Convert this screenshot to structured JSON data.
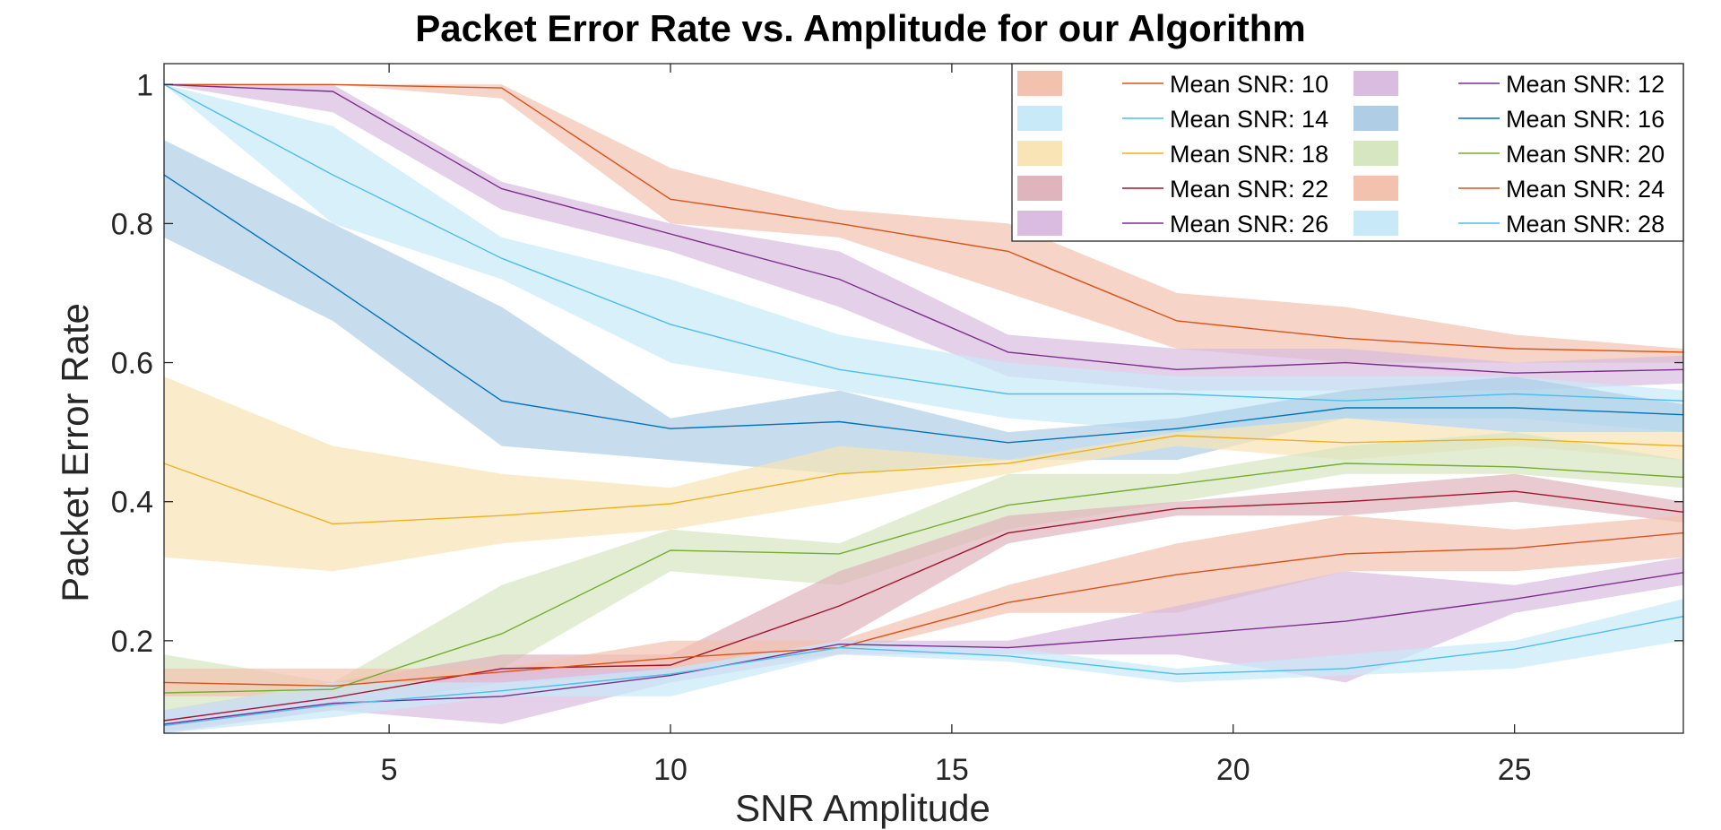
{
  "chart_data": {
    "type": "line",
    "title": "Packet Error Rate vs. Amplitude for our Algorithm",
    "xlabel": "SNR Amplitude",
    "ylabel": "Packet Error Rate",
    "xlim": [
      1,
      28
    ],
    "ylim": [
      0.067,
      1.03
    ],
    "xticks": [
      5,
      10,
      15,
      20,
      25
    ],
    "yticks": [
      0.2,
      0.4,
      0.6,
      0.8,
      1
    ],
    "ytick_labels": [
      "0.2",
      "0.4",
      "0.6",
      "0.8",
      "1"
    ],
    "grid": false,
    "legend_position": "top-right",
    "x": [
      1,
      4,
      7,
      10,
      13,
      16,
      19,
      22,
      25,
      28
    ],
    "series": [
      {
        "name": "Mean SNR: 10",
        "color": "#D95319",
        "fill": "#F2C2AF",
        "mean": [
          1.0,
          1.0,
          0.995,
          0.835,
          0.8,
          0.76,
          0.66,
          0.635,
          0.62,
          0.615
        ],
        "upper": [
          1.0,
          1.0,
          1.0,
          0.88,
          0.82,
          0.8,
          0.7,
          0.68,
          0.64,
          0.62
        ],
        "lower": [
          1.0,
          1.0,
          0.98,
          0.8,
          0.78,
          0.7,
          0.62,
          0.6,
          0.6,
          0.6
        ]
      },
      {
        "name": "Mean SNR: 12",
        "color": "#7E2F8E",
        "fill": "#D9BCDF",
        "mean": [
          1.0,
          0.99,
          0.85,
          0.785,
          0.72,
          0.615,
          0.59,
          0.6,
          0.585,
          0.59
        ],
        "upper": [
          1.0,
          1.0,
          0.86,
          0.8,
          0.76,
          0.64,
          0.62,
          0.62,
          0.6,
          0.61
        ],
        "lower": [
          1.0,
          0.96,
          0.82,
          0.76,
          0.68,
          0.58,
          0.56,
          0.56,
          0.56,
          0.57
        ]
      },
      {
        "name": "Mean SNR: 14",
        "color": "#4DBEEE",
        "fill": "#C7E9F8",
        "mean": [
          1.0,
          0.87,
          0.75,
          0.655,
          0.59,
          0.555,
          0.555,
          0.545,
          0.555,
          0.545
        ],
        "upper": [
          1.0,
          0.94,
          0.78,
          0.72,
          0.64,
          0.6,
          0.58,
          0.58,
          0.58,
          0.56
        ],
        "lower": [
          1.0,
          0.8,
          0.72,
          0.6,
          0.56,
          0.52,
          0.5,
          0.52,
          0.52,
          0.5
        ]
      },
      {
        "name": "Mean SNR: 16",
        "color": "#0072BD",
        "fill": "#AFCEE5",
        "mean": [
          0.87,
          0.71,
          0.545,
          0.505,
          0.515,
          0.485,
          0.505,
          0.535,
          0.535,
          0.525
        ],
        "upper": [
          0.92,
          0.8,
          0.68,
          0.52,
          0.56,
          0.5,
          0.52,
          0.56,
          0.58,
          0.54
        ],
        "lower": [
          0.78,
          0.66,
          0.48,
          0.46,
          0.44,
          0.46,
          0.46,
          0.52,
          0.5,
          0.5
        ]
      },
      {
        "name": "Mean SNR: 18",
        "color": "#EDB120",
        "fill": "#F8E4B4",
        "mean": [
          0.455,
          0.368,
          0.38,
          0.397,
          0.44,
          0.455,
          0.495,
          0.485,
          0.49,
          0.48
        ],
        "upper": [
          0.58,
          0.48,
          0.44,
          0.42,
          0.48,
          0.46,
          0.5,
          0.52,
          0.5,
          0.5
        ],
        "lower": [
          0.32,
          0.3,
          0.34,
          0.36,
          0.4,
          0.44,
          0.48,
          0.46,
          0.48,
          0.46
        ]
      },
      {
        "name": "Mean SNR: 20",
        "color": "#77AC30",
        "fill": "#D6E6C0",
        "mean": [
          0.125,
          0.13,
          0.21,
          0.33,
          0.325,
          0.395,
          0.425,
          0.455,
          0.45,
          0.435
        ],
        "upper": [
          0.18,
          0.14,
          0.28,
          0.36,
          0.34,
          0.44,
          0.44,
          0.48,
          0.5,
          0.46
        ],
        "lower": [
          0.1,
          0.12,
          0.16,
          0.3,
          0.28,
          0.36,
          0.4,
          0.44,
          0.44,
          0.42
        ]
      },
      {
        "name": "Mean SNR: 22",
        "color": "#A2142F",
        "fill": "#E0B4BC",
        "mean": [
          0.085,
          0.118,
          0.16,
          0.165,
          0.25,
          0.355,
          0.39,
          0.4,
          0.415,
          0.385
        ],
        "upper": [
          0.1,
          0.14,
          0.18,
          0.18,
          0.3,
          0.38,
          0.4,
          0.42,
          0.44,
          0.4
        ],
        "lower": [
          0.07,
          0.1,
          0.14,
          0.15,
          0.2,
          0.34,
          0.38,
          0.38,
          0.4,
          0.37
        ]
      },
      {
        "name": "Mean SNR: 24",
        "color": "#D95319",
        "fill": "#F2C2AF",
        "mean": [
          0.14,
          0.135,
          0.155,
          0.175,
          0.19,
          0.255,
          0.295,
          0.325,
          0.333,
          0.355
        ],
        "upper": [
          0.16,
          0.16,
          0.16,
          0.2,
          0.2,
          0.28,
          0.34,
          0.38,
          0.36,
          0.38
        ],
        "lower": [
          0.12,
          0.12,
          0.15,
          0.16,
          0.18,
          0.24,
          0.24,
          0.3,
          0.3,
          0.32
        ]
      },
      {
        "name": "Mean SNR: 26",
        "color": "#7E2F8E",
        "fill": "#D9BCDF",
        "mean": [
          0.08,
          0.11,
          0.12,
          0.15,
          0.195,
          0.19,
          0.208,
          0.228,
          0.26,
          0.298
        ],
        "upper": [
          0.1,
          0.12,
          0.16,
          0.16,
          0.2,
          0.2,
          0.25,
          0.3,
          0.28,
          0.32
        ],
        "lower": [
          0.067,
          0.1,
          0.08,
          0.14,
          0.18,
          0.18,
          0.18,
          0.14,
          0.24,
          0.28
        ]
      },
      {
        "name": "Mean SNR: 28",
        "color": "#4DBEEE",
        "fill": "#C7E9F8",
        "mean": [
          0.078,
          0.108,
          0.128,
          0.152,
          0.19,
          0.178,
          0.152,
          0.16,
          0.188,
          0.235
        ],
        "upper": [
          0.1,
          0.14,
          0.14,
          0.16,
          0.2,
          0.19,
          0.16,
          0.18,
          0.2,
          0.26
        ],
        "lower": [
          0.067,
          0.09,
          0.12,
          0.12,
          0.18,
          0.17,
          0.14,
          0.15,
          0.16,
          0.2
        ]
      }
    ]
  }
}
